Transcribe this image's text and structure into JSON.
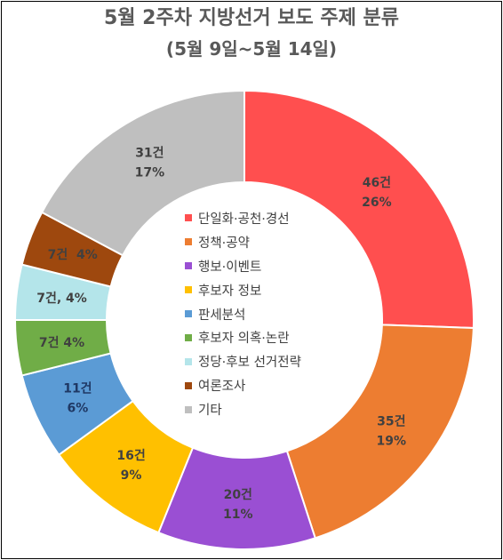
{
  "chart_data": {
    "type": "pie",
    "variant": "donut",
    "title": "5월 2주차 지방선거 보도 주제 분류",
    "subtitle": "(5월 9일~5월 14일)",
    "legend_position": "center",
    "slices": [
      {
        "name": "단일화·공천·경선",
        "count": 46,
        "value": 26,
        "color": "#FF4F4F",
        "labels": [
          "46건",
          "26%"
        ],
        "label_color": "#404040"
      },
      {
        "name": "정책·공약",
        "count": 35,
        "value": 19,
        "color": "#ED7D31",
        "labels": [
          "35건",
          "19%"
        ],
        "label_color": "#404040"
      },
      {
        "name": "행보·이벤트",
        "count": 20,
        "value": 11,
        "color": "#9A4FD3",
        "labels": [
          "20건",
          "11%"
        ],
        "label_color": "#404040"
      },
      {
        "name": "후보자 정보",
        "count": 16,
        "value": 9,
        "color": "#FFC000",
        "labels": [
          "16건",
          "9%"
        ],
        "label_color": "#404040"
      },
      {
        "name": "판세분석",
        "count": 11,
        "value": 6,
        "color": "#5B9BD5",
        "labels": [
          "11건",
          "6%"
        ],
        "label_color": "#1F3864"
      },
      {
        "name": "후보자 의혹·논란",
        "count": 7,
        "value": 4,
        "color": "#70AD47",
        "labels": [
          "7건 4%"
        ],
        "label_color": "#404040"
      },
      {
        "name": "정당·후보 선거전략",
        "count": 7,
        "value": 4,
        "color": "#B4E5EA",
        "labels": [
          "7건, 4%"
        ],
        "label_color": "#404040"
      },
      {
        "name": "여론조사",
        "count": 7,
        "value": 4,
        "color": "#9E480E",
        "labels": [
          "7건  4%"
        ],
        "label_color": "#404040"
      },
      {
        "name": "기타",
        "count": 31,
        "value": 17,
        "color": "#BFBFBF",
        "labels": [
          "31건",
          "17%"
        ],
        "label_color": "#404040"
      }
    ]
  }
}
